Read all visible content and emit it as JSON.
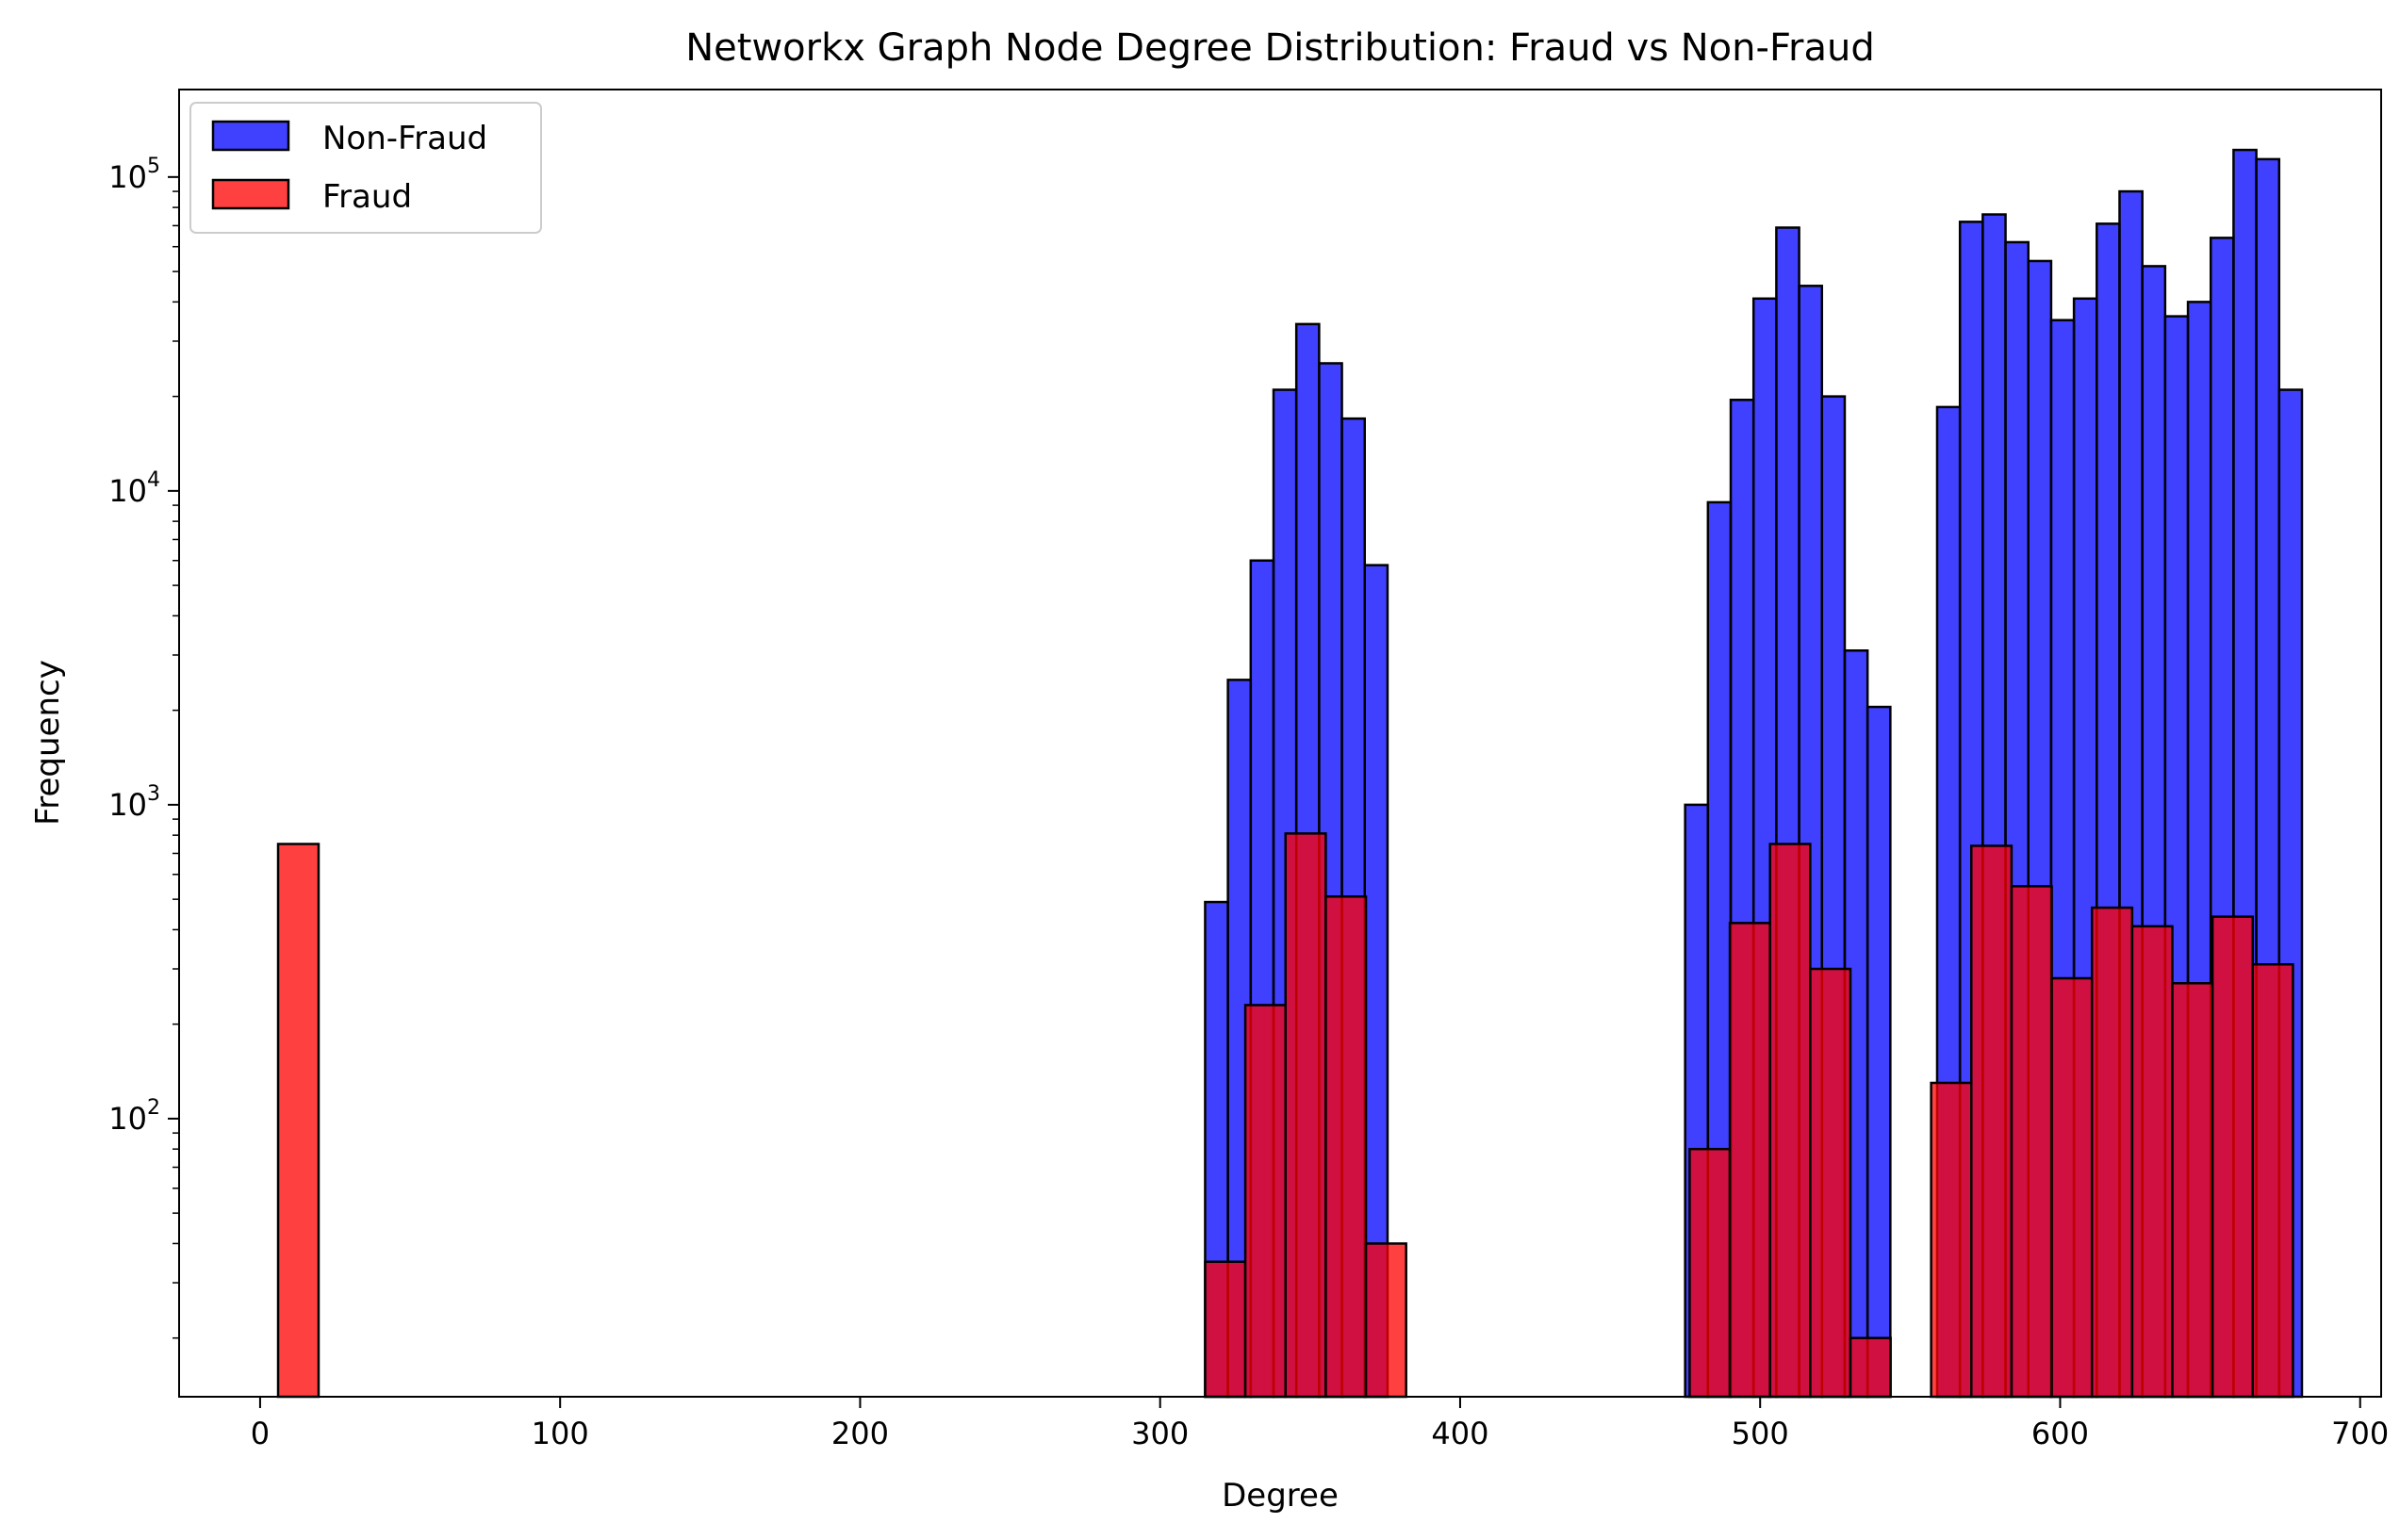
{
  "chart_data": {
    "type": "bar",
    "title": "Networkx Graph Node Degree Distribution: Fraud vs Non-Fraud",
    "xlabel": "Degree",
    "ylabel": "Frequency",
    "xlim": [
      -27,
      707
    ],
    "ylim": [
      13,
      190000
    ],
    "yscale": "log",
    "grid": false,
    "legend": {
      "placement": "top-left",
      "entries": [
        "Non-Fraud",
        "Fraud"
      ]
    },
    "x_ticks": [
      {
        "value": 0,
        "label": "0"
      },
      {
        "value": 100,
        "label": "100"
      },
      {
        "value": 200,
        "label": "200"
      },
      {
        "value": 300,
        "label": "300"
      },
      {
        "value": 400,
        "label": "400"
      },
      {
        "value": 500,
        "label": "500"
      },
      {
        "value": 600,
        "label": "600"
      },
      {
        "value": 700,
        "label": "700"
      }
    ],
    "y_ticks": [
      {
        "value": 100,
        "base": "10",
        "exp": "2"
      },
      {
        "value": 1000,
        "base": "10",
        "exp": "3"
      },
      {
        "value": 10000,
        "base": "10",
        "exp": "4"
      },
      {
        "value": 100000,
        "base": "10",
        "exp": "5"
      }
    ],
    "series": [
      {
        "name": "Non-Fraud",
        "color": "#0000ff",
        "alpha": 0.75,
        "bins": [
          {
            "x0": 315.0,
            "x1": 322.6,
            "value": 490
          },
          {
            "x0": 322.6,
            "x1": 330.2,
            "value": 2500
          },
          {
            "x0": 330.2,
            "x1": 337.8,
            "value": 6000
          },
          {
            "x0": 337.8,
            "x1": 345.4,
            "value": 21000
          },
          {
            "x0": 345.4,
            "x1": 353.0,
            "value": 34000
          },
          {
            "x0": 353.0,
            "x1": 360.6,
            "value": 25500
          },
          {
            "x0": 360.6,
            "x1": 368.2,
            "value": 17000
          },
          {
            "x0": 368.2,
            "x1": 375.8,
            "value": 5800
          },
          {
            "x0": 475.0,
            "x1": 482.6,
            "value": 1000
          },
          {
            "x0": 482.6,
            "x1": 490.2,
            "value": 9200
          },
          {
            "x0": 490.2,
            "x1": 497.8,
            "value": 19500
          },
          {
            "x0": 497.8,
            "x1": 505.4,
            "value": 41000
          },
          {
            "x0": 505.4,
            "x1": 513.0,
            "value": 69000
          },
          {
            "x0": 513.0,
            "x1": 520.6,
            "value": 45000
          },
          {
            "x0": 520.6,
            "x1": 528.2,
            "value": 20000
          },
          {
            "x0": 528.2,
            "x1": 535.8,
            "value": 3100
          },
          {
            "x0": 535.8,
            "x1": 543.4,
            "value": 2050
          },
          {
            "x0": 559.0,
            "x1": 566.6,
            "value": 18500
          },
          {
            "x0": 566.6,
            "x1": 574.2,
            "value": 72000
          },
          {
            "x0": 574.2,
            "x1": 581.8,
            "value": 76000
          },
          {
            "x0": 581.8,
            "x1": 589.4,
            "value": 62000
          },
          {
            "x0": 589.4,
            "x1": 597.0,
            "value": 54000
          },
          {
            "x0": 597.0,
            "x1": 604.6,
            "value": 35000
          },
          {
            "x0": 604.6,
            "x1": 612.2,
            "value": 41000
          },
          {
            "x0": 612.2,
            "x1": 619.8,
            "value": 71000
          },
          {
            "x0": 619.8,
            "x1": 627.4,
            "value": 90000
          },
          {
            "x0": 627.4,
            "x1": 635.0,
            "value": 52000
          },
          {
            "x0": 635.0,
            "x1": 642.6,
            "value": 36000
          },
          {
            "x0": 642.6,
            "x1": 650.2,
            "value": 40000
          },
          {
            "x0": 650.2,
            "x1": 657.8,
            "value": 64000
          },
          {
            "x0": 657.8,
            "x1": 665.4,
            "value": 122000
          },
          {
            "x0": 665.4,
            "x1": 673.0,
            "value": 114000
          },
          {
            "x0": 673.0,
            "x1": 680.6,
            "value": 21000
          }
        ]
      },
      {
        "name": "Fraud",
        "color": "#ff0000",
        "alpha": 0.75,
        "bins": [
          {
            "x0": 6.0,
            "x1": 19.5,
            "value": 750
          },
          {
            "x0": 315.0,
            "x1": 328.4,
            "value": 35
          },
          {
            "x0": 328.4,
            "x1": 341.8,
            "value": 230
          },
          {
            "x0": 341.8,
            "x1": 355.2,
            "value": 810
          },
          {
            "x0": 355.2,
            "x1": 368.6,
            "value": 510
          },
          {
            "x0": 368.6,
            "x1": 382.0,
            "value": 40
          },
          {
            "x0": 476.5,
            "x1": 489.9,
            "value": 80
          },
          {
            "x0": 489.9,
            "x1": 503.3,
            "value": 420
          },
          {
            "x0": 503.3,
            "x1": 516.7,
            "value": 750
          },
          {
            "x0": 516.7,
            "x1": 530.1,
            "value": 300
          },
          {
            "x0": 530.1,
            "x1": 543.5,
            "value": 20
          },
          {
            "x0": 557.0,
            "x1": 570.4,
            "value": 130
          },
          {
            "x0": 570.4,
            "x1": 583.8,
            "value": 740
          },
          {
            "x0": 583.8,
            "x1": 597.2,
            "value": 550
          },
          {
            "x0": 597.2,
            "x1": 610.6,
            "value": 280
          },
          {
            "x0": 610.6,
            "x1": 624.0,
            "value": 470
          },
          {
            "x0": 624.0,
            "x1": 637.4,
            "value": 410
          },
          {
            "x0": 637.4,
            "x1": 650.8,
            "value": 270
          },
          {
            "x0": 650.8,
            "x1": 664.2,
            "value": 440
          },
          {
            "x0": 664.2,
            "x1": 677.6,
            "value": 310
          }
        ]
      }
    ]
  }
}
